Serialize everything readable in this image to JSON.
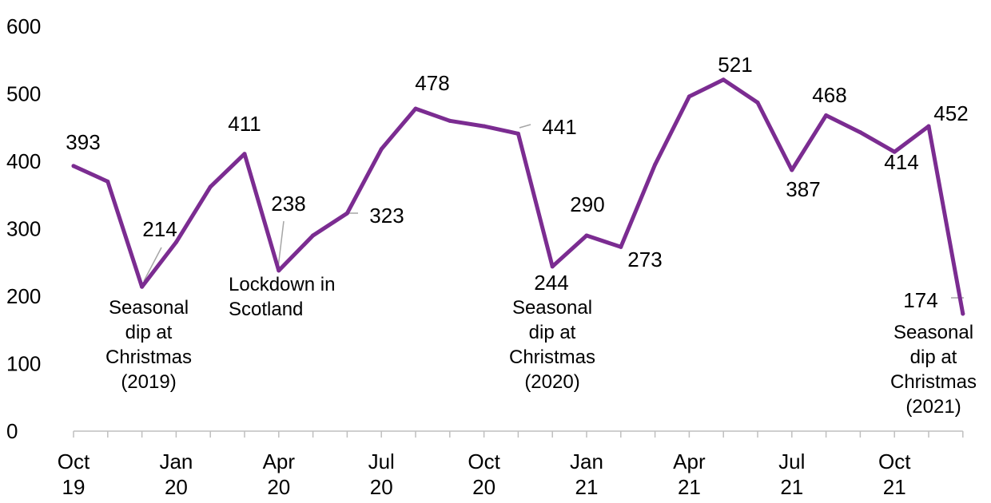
{
  "chart_data": {
    "type": "line",
    "title": "",
    "xlabel": "",
    "ylabel": "",
    "ylim": [
      0,
      600
    ],
    "yticks": [
      0,
      100,
      200,
      300,
      400,
      500,
      600
    ],
    "grid": false,
    "legend": "none",
    "colors": {
      "series": "#7B2C91",
      "axis": "#BFBFBF",
      "leader": "#A6A6A6"
    },
    "x_tick_labels": [
      {
        "month": "Oct 2019",
        "line1": "Oct",
        "line2": "19"
      },
      {
        "month": "Jan 2020",
        "line1": "Jan",
        "line2": "20"
      },
      {
        "month": "Apr 2020",
        "line1": "Apr",
        "line2": "20"
      },
      {
        "month": "Jul 2020",
        "line1": "Jul",
        "line2": "20"
      },
      {
        "month": "Oct 2020",
        "line1": "Oct",
        "line2": "20"
      },
      {
        "month": "Jan 2021",
        "line1": "Jan",
        "line2": "21"
      },
      {
        "month": "Apr 2021",
        "line1": "Apr",
        "line2": "21"
      },
      {
        "month": "Jul 2021",
        "line1": "Jul",
        "line2": "21"
      },
      {
        "month": "Oct 2021",
        "line1": "Oct",
        "line2": "21"
      }
    ],
    "series": [
      {
        "x": [
          "Oct 2019",
          "Nov 2019",
          "Dec 2019",
          "Jan 2020",
          "Feb 2020",
          "Mar 2020",
          "Apr 2020",
          "May 2020",
          "Jun 2020",
          "Jul 2020",
          "Aug 2020",
          "Sep 2020",
          "Oct 2020",
          "Nov 2020",
          "Dec 2020",
          "Jan 2021",
          "Feb 2021",
          "Mar 2021",
          "Apr 2021",
          "May 2021",
          "Jun 2021",
          "Jul 2021",
          "Aug 2021",
          "Sep 2021",
          "Oct 2021",
          "Nov 2021",
          "Dec 2021"
        ],
        "values": [
          393,
          370,
          214,
          280,
          362,
          411,
          238,
          290,
          323,
          418,
          478,
          460,
          452,
          441,
          244,
          290,
          273,
          395,
          496,
          521,
          487,
          387,
          468,
          443,
          414,
          452,
          174
        ]
      }
    ],
    "data_labels": [
      {
        "text": "393",
        "month": "Oct 2019"
      },
      {
        "text": "214",
        "month": "Dec 2019"
      },
      {
        "text": "411",
        "month": "Mar 2020"
      },
      {
        "text": "238",
        "month": "Apr 2020"
      },
      {
        "text": "323",
        "month": "Jun 2020"
      },
      {
        "text": "478",
        "month": "Aug 2020"
      },
      {
        "text": "441",
        "month": "Nov 2020"
      },
      {
        "text": "244",
        "month": "Dec 2020"
      },
      {
        "text": "290",
        "month": "Jan 2021"
      },
      {
        "text": "273",
        "month": "Feb 2021"
      },
      {
        "text": "521",
        "month": "May 2021"
      },
      {
        "text": "387",
        "month": "Jul 2021"
      },
      {
        "text": "468",
        "month": "Aug 2021"
      },
      {
        "text": "414",
        "month": "Oct 2021"
      },
      {
        "text": "452",
        "month": "Nov 2021"
      },
      {
        "text": "174",
        "month": "Dec 2021"
      }
    ],
    "annotations": [
      {
        "month": "Dec 2019",
        "lines": [
          "Seasonal",
          "dip at",
          "Christmas",
          "(2019)"
        ]
      },
      {
        "month": "Apr 2020",
        "lines": [
          "Lockdown in",
          "Scotland"
        ]
      },
      {
        "month": "Dec 2020",
        "lines": [
          "Seasonal",
          "dip at",
          "Christmas",
          "(2020)"
        ]
      },
      {
        "month": "Dec 2021",
        "lines": [
          "Seasonal",
          "dip at",
          "Christmas",
          "(2021)"
        ]
      }
    ]
  }
}
